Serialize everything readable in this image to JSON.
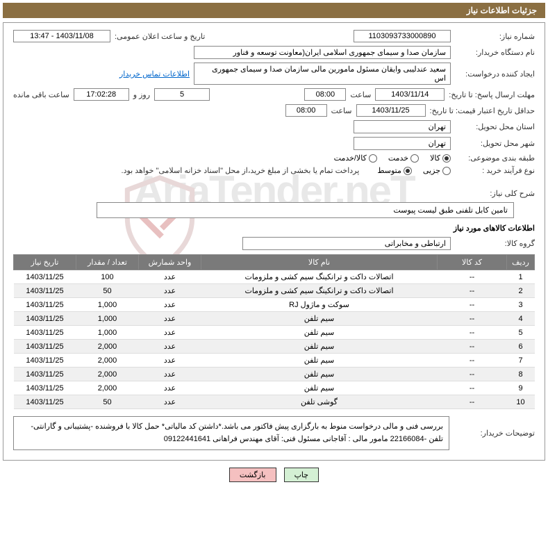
{
  "header": {
    "title": "جزئیات اطلاعات نیاز"
  },
  "watermark": {
    "text": "AriaTender.neT"
  },
  "fields": {
    "need_number_label": "شماره نیاز:",
    "need_number": "1103093733000890",
    "announce_date_label": "تاریخ و ساعت اعلان عمومی:",
    "announce_date": "1403/11/08 - 13:47",
    "buyer_org_label": "نام دستگاه خریدار:",
    "buyer_org": "سازمان صدا و سیمای جمهوری اسلامی ایران(معاونت توسعه و فناور",
    "requester_label": "ایجاد کننده درخواست:",
    "requester": "سعید عندلیبی وایقان مسئول مامورین مالی  سازمان صدا و سیمای جمهوری اس",
    "contact_link": "اطلاعات تماس خریدار",
    "deadline_label": "مهلت ارسال پاسخ: تا تاریخ:",
    "deadline_date": "1403/11/14",
    "time_label": "ساعت",
    "deadline_time": "08:00",
    "days_remaining": "5",
    "days_text": "روز و",
    "time_remaining": "17:02:28",
    "remaining_text": "ساعت باقی مانده",
    "validity_label": "حداقل تاریخ اعتبار قیمت: تا تاریخ:",
    "validity_date": "1403/11/25",
    "validity_time": "08:00",
    "province_label": "استان محل تحویل:",
    "province": "تهران",
    "city_label": "شهر محل تحویل:",
    "city": "تهران",
    "category_label": "طبقه بندی موضوعی:",
    "cat_goods": "کالا",
    "cat_service": "خدمت",
    "cat_goods_service": "کالا/خدمت",
    "purchase_type_label": "نوع فرآیند خرید :",
    "pt_partial": "جزیی",
    "pt_medium": "متوسط",
    "payment_note": "پرداخت تمام یا بخشی از مبلغ خرید،از محل \"اسناد خزانه اسلامی\" خواهد بود.",
    "summary_label": "شرح کلی نیاز:",
    "summary": "تامین کابل تلفنی طبق لیست پیوست",
    "goods_info_title": "اطلاعات کالاهای مورد نیاز",
    "group_label": "گروه کالا:",
    "group": "ارتباطی و مخابراتی",
    "notes_label": "توضیحات خریدار:",
    "notes": "بررسی فنی و مالی درخواست منوط به بارگزاری پیش فاکتور می باشد.*داشتن کد مالیاتی*  حمل کالا با فروشنده -پشتیبانی و گارانتی- تلفن -22166084 مامور مالی : آقاجانی مسئول فنی: آقای مهندس فراهانی 09122441641"
  },
  "table": {
    "headers": {
      "row": "ردیف",
      "code": "کد کالا",
      "name": "نام کالا",
      "unit": "واحد شمارش",
      "qty": "تعداد / مقدار",
      "date": "تاریخ نیاز"
    },
    "rows": [
      {
        "n": "1",
        "code": "--",
        "name": "اتصالات داکت و ترانکینگ سیم کشی و ملزومات",
        "unit": "عدد",
        "qty": "100",
        "date": "1403/11/25"
      },
      {
        "n": "2",
        "code": "--",
        "name": "اتصالات داکت و ترانکینگ سیم کشی و ملزومات",
        "unit": "عدد",
        "qty": "50",
        "date": "1403/11/25"
      },
      {
        "n": "3",
        "code": "--",
        "name": "سوکت و ماژول RJ",
        "unit": "عدد",
        "qty": "1,000",
        "date": "1403/11/25"
      },
      {
        "n": "4",
        "code": "--",
        "name": "سیم تلفن",
        "unit": "عدد",
        "qty": "1,000",
        "date": "1403/11/25"
      },
      {
        "n": "5",
        "code": "--",
        "name": "سیم تلفن",
        "unit": "عدد",
        "qty": "1,000",
        "date": "1403/11/25"
      },
      {
        "n": "6",
        "code": "--",
        "name": "سیم تلفن",
        "unit": "عدد",
        "qty": "2,000",
        "date": "1403/11/25"
      },
      {
        "n": "7",
        "code": "--",
        "name": "سیم تلفن",
        "unit": "عدد",
        "qty": "2,000",
        "date": "1403/11/25"
      },
      {
        "n": "8",
        "code": "--",
        "name": "سیم تلفن",
        "unit": "عدد",
        "qty": "2,000",
        "date": "1403/11/25"
      },
      {
        "n": "9",
        "code": "--",
        "name": "سیم تلفن",
        "unit": "عدد",
        "qty": "2,000",
        "date": "1403/11/25"
      },
      {
        "n": "10",
        "code": "--",
        "name": "گوشی تلفن",
        "unit": "عدد",
        "qty": "50",
        "date": "1403/11/25"
      }
    ]
  },
  "buttons": {
    "print": "چاپ",
    "back": "بازگشت"
  },
  "colors": {
    "header_bg": "#8b6f42",
    "header_text": "#ffffff",
    "table_header_bg": "#7a7a7a",
    "link": "#0066cc",
    "btn_print_bg": "#d4f0d4",
    "btn_back_bg": "#f5c0c0"
  }
}
